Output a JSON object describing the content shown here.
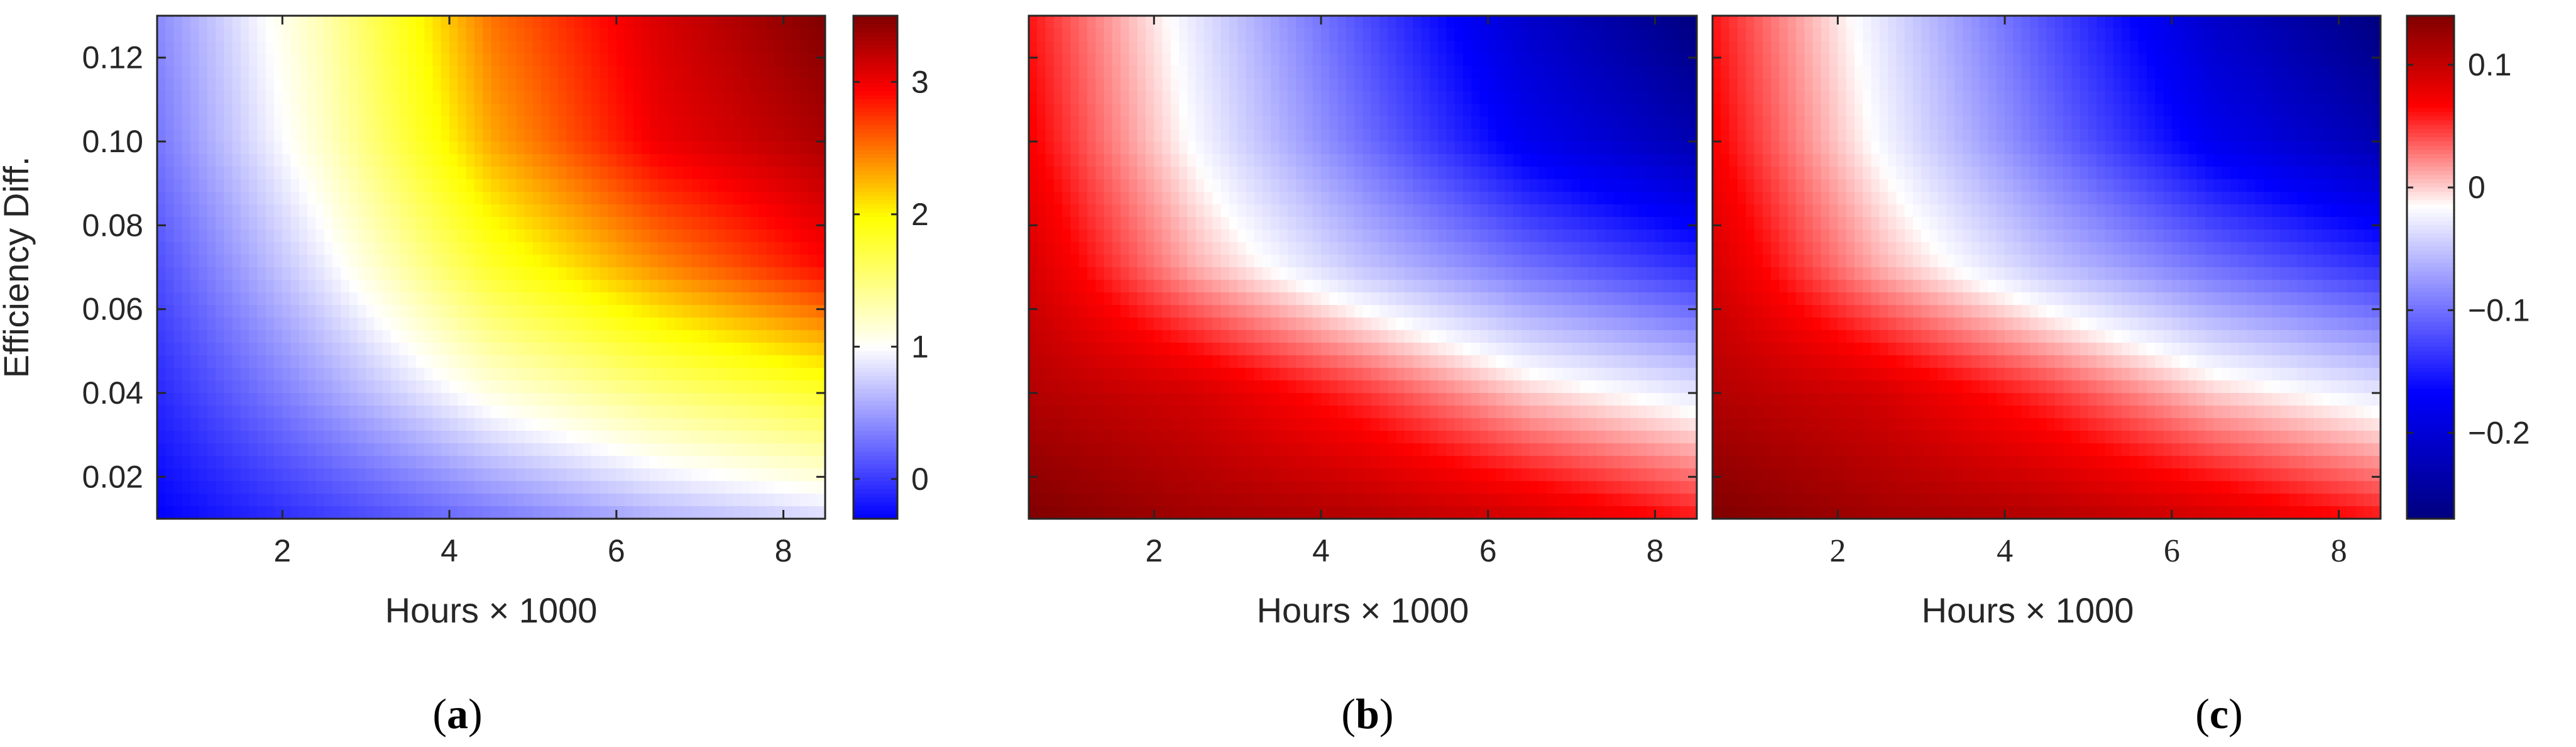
{
  "colors": {
    "blue": "#0000ff",
    "white": "#ffffff",
    "yellow": "#ffff00",
    "red": "#ff0000",
    "dark_red": "#800000",
    "dark_blue": "#00007f"
  },
  "chart_data": [
    {
      "type": "heatmap",
      "panel_label": "a",
      "xlabel": "Hours × 1000",
      "ylabel": "Efficiency Diff.",
      "xlim": [
        0.5,
        8.5
      ],
      "ylim": [
        0.01,
        0.13
      ],
      "xticks": [
        "2",
        "4",
        "6",
        "8"
      ],
      "yticks": [
        "0.02",
        "0.04",
        "0.06",
        "0.08",
        "0.10",
        "0.12"
      ],
      "colorbar": {
        "range": [
          -0.3,
          3.5
        ],
        "ticks": [
          "0",
          "1",
          "2",
          "3"
        ],
        "colormap": "blue-white-yellow-red"
      },
      "grid": false,
      "x": [
        0.5,
        2.5,
        4.5,
        6.5,
        8.5
      ],
      "y": [
        0.01,
        0.04,
        0.07,
        0.1,
        0.13
      ],
      "z": [
        [
          -0.3,
          0.0,
          0.3,
          0.6,
          0.8
        ],
        [
          -0.1,
          0.5,
          1.1,
          1.5,
          1.8
        ],
        [
          0.1,
          0.9,
          1.8,
          2.4,
          2.9
        ],
        [
          0.3,
          1.2,
          2.3,
          3.0,
          3.3
        ],
        [
          0.4,
          1.3,
          2.5,
          3.1,
          3.5
        ]
      ]
    },
    {
      "type": "heatmap",
      "panel_label": "b",
      "xlabel": "Hours × 1000",
      "ylabel": "",
      "xlim": [
        0.5,
        8.5
      ],
      "ylim": [
        0.01,
        0.13
      ],
      "xticks": [
        "2",
        "4",
        "6",
        "8"
      ],
      "yticks": [],
      "colorbar": null,
      "grid": false,
      "x": [
        0.5,
        2.5,
        4.5,
        6.5,
        8.5
      ],
      "y": [
        0.01,
        0.04,
        0.07,
        0.1,
        0.13
      ],
      "z": [
        [
          0.14,
          0.12,
          0.11,
          0.09,
          0.06
        ],
        [
          0.11,
          0.09,
          0.05,
          0.0,
          -0.03
        ],
        [
          0.09,
          0.01,
          -0.05,
          -0.1,
          -0.14
        ],
        [
          0.07,
          -0.02,
          -0.1,
          -0.18,
          -0.23
        ],
        [
          0.06,
          -0.03,
          -0.12,
          -0.21,
          -0.27
        ]
      ]
    },
    {
      "type": "heatmap",
      "panel_label": "c",
      "xlabel": "Hours × 1000",
      "ylabel": "",
      "xlim": [
        0.5,
        8.5
      ],
      "ylim": [
        0.01,
        0.13
      ],
      "xticks": [
        "2",
        "4",
        "6",
        "8"
      ],
      "yticks": [],
      "colorbar": {
        "range": [
          -0.27,
          0.14
        ],
        "ticks": [
          "0.1",
          "0",
          "−0.1",
          "−0.2"
        ],
        "colormap": "blue-white-red"
      },
      "grid": false,
      "x": [
        0.5,
        2.5,
        4.5,
        6.5,
        8.5
      ],
      "y": [
        0.01,
        0.04,
        0.07,
        0.1,
        0.13
      ],
      "z": [
        [
          0.14,
          0.12,
          0.11,
          0.09,
          0.06
        ],
        [
          0.11,
          0.09,
          0.05,
          0.0,
          -0.03
        ],
        [
          0.09,
          0.01,
          -0.05,
          -0.1,
          -0.14
        ],
        [
          0.07,
          -0.02,
          -0.1,
          -0.18,
          -0.23
        ],
        [
          0.06,
          -0.03,
          -0.12,
          -0.21,
          -0.27
        ]
      ]
    }
  ]
}
